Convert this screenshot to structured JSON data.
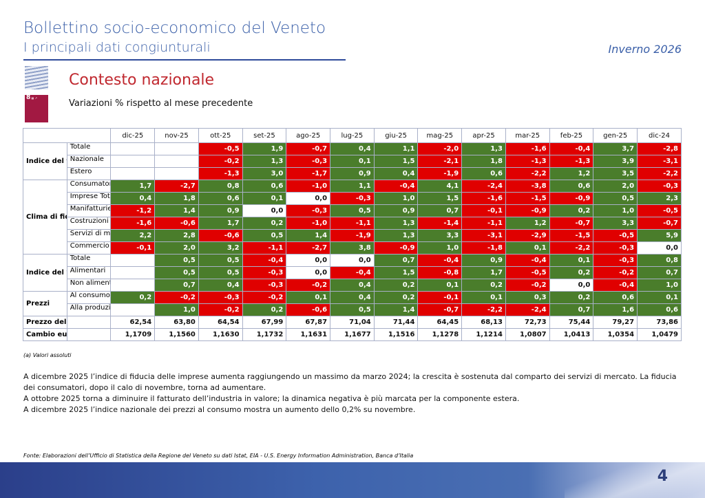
{
  "header": {
    "title": "Bollettino socio-economico del Veneto",
    "subtitle": "I principali dati congiunturali",
    "season": "Inverno 2026"
  },
  "section": {
    "title": "Contesto nazionale",
    "subtitle": "Variazioni % rispetto al mese precedente",
    "sdg_logo_text": "8 LAVORO DIGNITOSO E CRESCITA ECONOMICA"
  },
  "table": {
    "columns": [
      "dic-25",
      "nov-25",
      "ott-25",
      "set-25",
      "ago-25",
      "lug-25",
      "giu-25",
      "mag-25",
      "apr-25",
      "mar-25",
      "feb-25",
      "gen-25",
      "dic-24"
    ],
    "groups": [
      {
        "label": "Indice del fatturato delle imprese industriali",
        "rows": [
          {
            "label": "Totale",
            "values": [
              "",
              "",
              "-0,5",
              "1,9",
              "-0,7",
              "0,4",
              "1,1",
              "-2,0",
              "1,3",
              "-1,6",
              "-0,4",
              "3,7",
              "-2,8"
            ]
          },
          {
            "label": "Nazionale",
            "values": [
              "",
              "",
              "-0,2",
              "1,3",
              "-0,3",
              "0,1",
              "1,5",
              "-2,1",
              "1,8",
              "-1,3",
              "-1,3",
              "3,9",
              "-3,1"
            ]
          },
          {
            "label": "Estero",
            "values": [
              "",
              "",
              "-1,3",
              "3,0",
              "-1,7",
              "0,9",
              "0,4",
              "-1,9",
              "0,6",
              "-2,2",
              "1,2",
              "3,5",
              "-2,2"
            ]
          }
        ]
      },
      {
        "label": "Clima di fiducia",
        "rows": [
          {
            "label": "Consumatori",
            "values": [
              "1,7",
              "-2,7",
              "0,8",
              "0,6",
              "-1,0",
              "1,1",
              "-0,4",
              "4,1",
              "-2,4",
              "-3,8",
              "0,6",
              "2,0",
              "-0,3"
            ]
          },
          {
            "label": "Imprese Totale",
            "values": [
              "0,4",
              "1,8",
              "0,6",
              "0,1",
              "0,0",
              "-0,3",
              "1,0",
              "1,5",
              "-1,6",
              "-1,5",
              "-0,9",
              "0,5",
              "2,3"
            ]
          },
          {
            "label": "Manifatturiere",
            "values": [
              "-1,2",
              "1,4",
              "0,9",
              "0,0",
              "-0,3",
              "0,5",
              "0,9",
              "0,7",
              "-0,1",
              "-0,9",
              "0,2",
              "1,0",
              "-0,5"
            ]
          },
          {
            "label": "Costruzioni",
            "values": [
              "-1,6",
              "-0,6",
              "1,7",
              "0,2",
              "-1,0",
              "-1,1",
              "1,3",
              "-1,4",
              "-1,1",
              "1,2",
              "-0,7",
              "3,3",
              "-0,7"
            ]
          },
          {
            "label": "Servizi di mercato",
            "values": [
              "2,2",
              "2,8",
              "-0,6",
              "0,5",
              "1,4",
              "-1,9",
              "1,3",
              "3,3",
              "-3,1",
              "-2,9",
              "-1,5",
              "-0,5",
              "5,9"
            ]
          },
          {
            "label": "Commercio al dettaglio",
            "values": [
              "-0,1",
              "2,0",
              "3,2",
              "-1,1",
              "-2,7",
              "3,8",
              "-0,9",
              "1,0",
              "-1,8",
              "0,1",
              "-2,2",
              "-0,3",
              "0,0"
            ]
          }
        ]
      },
      {
        "label": "Indice del valore delle vendite",
        "rows": [
          {
            "label": "Totale",
            "values": [
              "",
              "0,5",
              "0,5",
              "-0,4",
              "0,0",
              "0,0",
              "0,7",
              "-0,4",
              "0,9",
              "-0,4",
              "0,1",
              "-0,3",
              "0,8"
            ]
          },
          {
            "label": "Alimentari",
            "values": [
              "",
              "0,5",
              "0,5",
              "-0,3",
              "0,0",
              "-0,4",
              "1,5",
              "-0,8",
              "1,7",
              "-0,5",
              "0,2",
              "-0,2",
              "0,7"
            ]
          },
          {
            "label": "Non alimentari",
            "values": [
              "",
              "0,7",
              "0,4",
              "-0,3",
              "-0,2",
              "0,4",
              "0,2",
              "0,1",
              "0,2",
              "-0,2",
              "0,0",
              "-0,4",
              "1,0"
            ]
          }
        ]
      },
      {
        "label": "Prezzi",
        "rows": [
          {
            "label": "Al consumo",
            "values": [
              "0,2",
              "-0,2",
              "-0,3",
              "-0,2",
              "0,1",
              "0,4",
              "0,2",
              "-0,1",
              "0,1",
              "0,3",
              "0,2",
              "0,6",
              "0,1"
            ]
          },
          {
            "label": "Alla produzione dell’industria",
            "values": [
              "",
              "1,0",
              "-0,2",
              "0,2",
              "-0,6",
              "0,5",
              "1,4",
              "-0,7",
              "-2,2",
              "-2,4",
              "0,7",
              "1,6",
              "0,6"
            ]
          }
        ]
      }
    ],
    "absolute_rows": [
      {
        "label": "Prezzo del petrolio Brent ($/barile) (a)",
        "values": [
          "62,54",
          "63,80",
          "64,54",
          "67,99",
          "67,87",
          "71,04",
          "71,44",
          "64,45",
          "68,13",
          "72,73",
          "75,44",
          "79,27",
          "73,86"
        ]
      },
      {
        "label": "Cambio euro/dollaro (a)",
        "values": [
          "1,1709",
          "1,1560",
          "1,1630",
          "1,1732",
          "1,1631",
          "1,1677",
          "1,1516",
          "1,1278",
          "1,1214",
          "1,0807",
          "1,0413",
          "1,0354",
          "1,0479"
        ]
      }
    ],
    "colors": {
      "positive": "#4a7d2b",
      "negative": "#e00000",
      "zero": "#ffffff"
    }
  },
  "note": "(a) Valori assoluti",
  "paragraphs": [
    "A dicembre 2025 l’indice di fiducia delle imprese aumenta raggiungendo un massimo da marzo 2024; la crescita è sostenuta dal comparto dei servizi di mercato. La fiducia dei consumatori, dopo il calo di novembre, torna ad aumentare.",
    "A ottobre 2025 torna a diminuire il fatturato dell’industria in valore; la dinamica negativa è più marcata per la componente estera.",
    "A dicembre 2025 l’indice nazionale dei prezzi al consumo mostra un aumento dello 0,2% su novembre."
  ],
  "source": "Fonte: Elaborazioni dell’Ufficio di Statistica della Regione del Veneto su dati Istat, EIA - U.S. Energy Information Administration, Banca d’Italia",
  "page_number": "4"
}
